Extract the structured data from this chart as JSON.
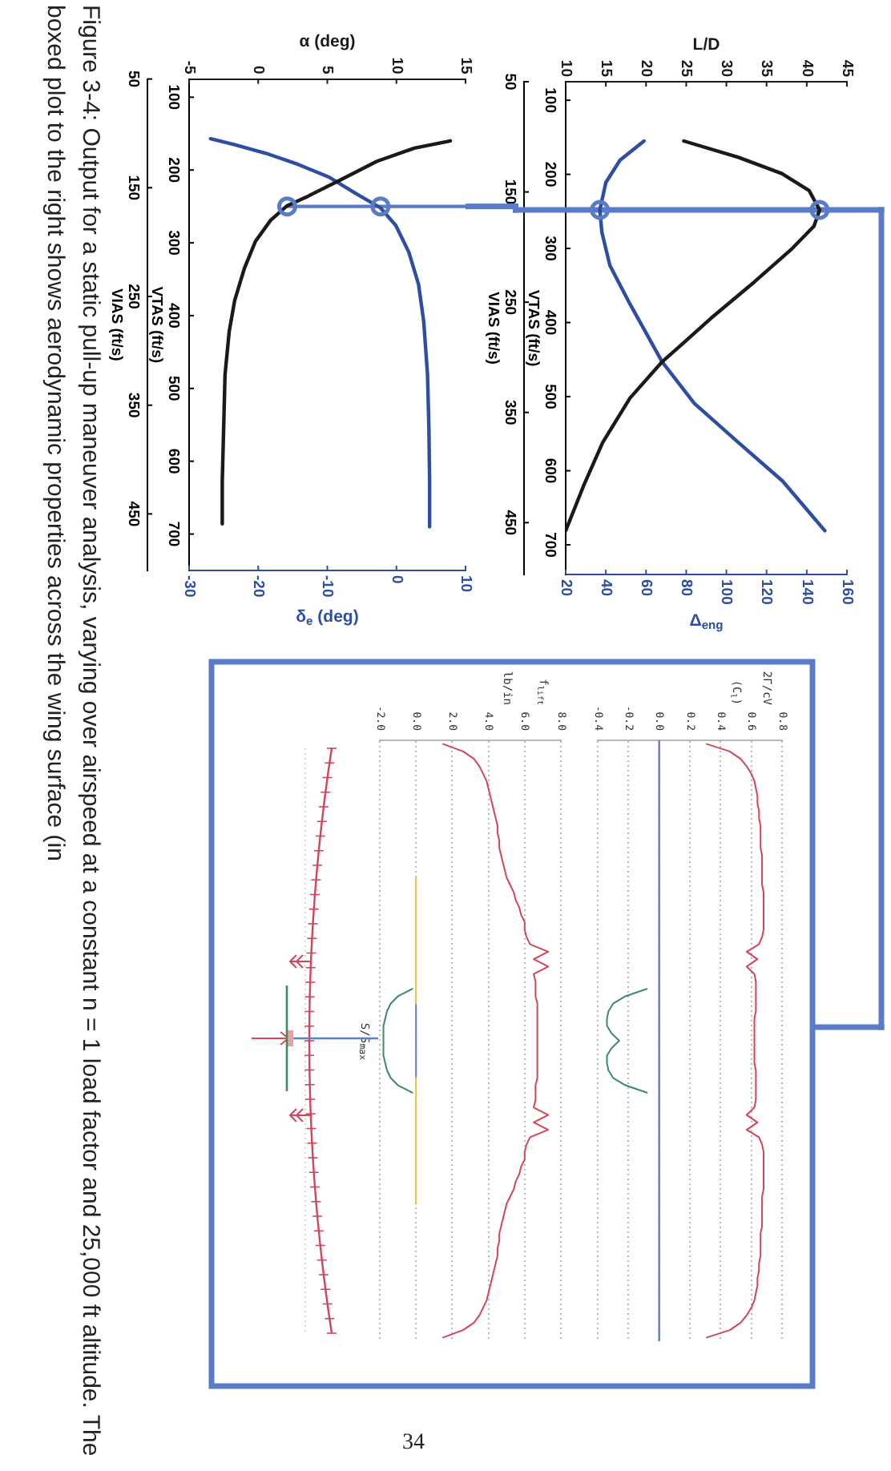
{
  "chart_data": [
    {
      "type": "line",
      "xlabel": "Δ$_{eng}$",
      "x2label": "L/D",
      "ylabel": "VTAS (ft/s)",
      "y2label": "VIAS (ft/s)",
      "xlim": [
        20,
        160
      ],
      "xticks": [
        20,
        40,
        60,
        80,
        100,
        120,
        140,
        160
      ],
      "x2lim": [
        10,
        45
      ],
      "x2ticks": [
        10,
        15,
        20,
        25,
        30,
        35,
        40,
        45
      ],
      "ylim": [
        740,
        75
      ],
      "yticks": [
        100,
        200,
        300,
        400,
        500,
        600,
        700
      ],
      "y2lim": [
        497,
        50
      ],
      "y2ticks": [
        50,
        150,
        250,
        350,
        450
      ],
      "ref_lines": [
        {
          "axis": "y",
          "value": 248,
          "color": "#5a7bc8"
        }
      ],
      "series": [
        {
          "type": "line",
          "axis": "x2",
          "color": "#1a1a1a",
          "x": [
            24.7,
            31.5,
            36.9,
            40.3,
            41.6,
            40.9,
            38.2,
            33.5,
            28.1,
            24.7,
            22,
            18,
            14.6,
            12.2,
            10
          ],
          "values": [
            155,
            177,
            199,
            222,
            248,
            270,
            300,
            345,
            394,
            427,
            453,
            502,
            562,
            621,
            681
          ]
        },
        {
          "type": "line",
          "color": "#2d4ea3",
          "x": [
            59,
            47,
            40,
            37,
            38,
            42,
            52,
            68,
            84,
            106,
            128,
            149
          ],
          "values": [
            155,
            181,
            211,
            248,
            278,
            323,
            375,
            453,
            509,
            562,
            614,
            681
          ]
        },
        {
          "type": "scatter",
          "axis": "x2",
          "marker": "circle",
          "color": "#5a7bc8",
          "x": [
            41.6
          ],
          "values": [
            248
          ]
        },
        {
          "type": "scatter",
          "marker": "circle",
          "color": "#5a7bc8",
          "x": [
            37
          ],
          "values": [
            248
          ]
        }
      ],
      "annotations": [
        "Figure 3-4: Output for a static pull-up maneuver analysis, varying over airspeed at a constant n = 1 load factor and 25,000 ft altitude. The boxed plot to the right shows aerodynamic properties across the wing surface (in",
        "34"
      ]
    },
    {
      "type": "line",
      "xlabel": "δ$_{e}$ (deg)",
      "x2label": "α (deg)",
      "ylabel": "VTAS (ft/s)",
      "y2label": "VIAS (ft/s)",
      "xlim": [
        -30,
        10
      ],
      "xticks": [
        -30,
        -20,
        -10,
        0,
        10
      ],
      "x2lim": [
        -5,
        15
      ],
      "x2ticks": [
        -5,
        0,
        5,
        10,
        15
      ],
      "ylim": [
        750,
        75
      ],
      "yticks": [
        100,
        200,
        300,
        400,
        500,
        600,
        700
      ],
      "y2lim": [
        502,
        50
      ],
      "y2ticks": [
        50,
        150,
        250,
        350,
        450
      ],
      "series": [
        {
          "type": "line",
          "axis": "x2",
          "color": "#1a1a1a",
          "x": [
            13.9,
            11.3,
            8.6,
            5.9,
            3.6,
            2.1,
            0.9,
            -0.2,
            -1,
            -1.7,
            -2.1,
            -2.4,
            -2.5,
            -2.6,
            -2.6
          ],
          "values": [
            160,
            170,
            188,
            214,
            236,
            249,
            269,
            298,
            335,
            379,
            422,
            481,
            554,
            628,
            686
          ]
        },
        {
          "type": "line",
          "color": "#2d4ea3",
          "x": [
            -26.9,
            -23.5,
            -18.9,
            -14.3,
            -9.7,
            -5.9,
            -2.3,
            -0.1,
            1.8,
            3.2,
            3.95,
            4.5,
            4.7,
            4.8,
            4.8
          ],
          "values": [
            157,
            165,
            177,
            192,
            210,
            232,
            252,
            276,
            313,
            357,
            408,
            481,
            554,
            628,
            690
          ]
        },
        {
          "type": "line",
          "axis": "x2",
          "color": "#5a7bc8",
          "x": [
            2.1,
            15
          ],
          "values": [
            250,
            250
          ]
        },
        {
          "type": "scatter",
          "axis": "x2",
          "marker": "circle",
          "color": "#5a7bc8",
          "x": [
            2.1
          ],
          "values": [
            250
          ]
        },
        {
          "type": "scatter",
          "marker": "circle",
          "color": "#5a7bc8",
          "x": [
            -2.3
          ],
          "values": [
            250
          ]
        }
      ]
    },
    {
      "type": "line",
      "orientation": "horizontal",
      "xlabel": "2Γ/cV\n(C$_{l}$)",
      "categories": [
        null,
        null,
        null,
        null,
        null,
        null,
        null,
        null,
        null,
        null,
        null,
        null,
        null,
        null,
        null,
        null,
        null,
        null,
        null,
        null,
        null,
        null,
        null,
        null,
        null,
        null,
        null,
        null,
        null,
        null,
        null,
        null,
        null,
        null,
        null,
        null,
        null,
        null,
        null,
        null,
        null,
        null,
        null,
        null,
        null,
        null,
        null,
        null,
        null,
        null,
        null,
        null,
        null,
        null,
        null,
        null,
        null,
        null,
        null,
        null,
        null,
        null,
        null,
        null,
        null,
        null,
        null,
        null,
        null,
        null,
        null,
        null,
        null,
        null,
        null,
        null,
        null,
        null,
        null,
        null,
        null
      ],
      "xlim": [
        -0.4,
        0.8
      ],
      "xticks": [
        -0.4,
        -0.2,
        {
          "value": 0,
          "label": "0.0"
        },
        0.2,
        0.4,
        0.6,
        0.8
      ],
      "grid": "x",
      "tick_labels": "x",
      "ref_lines": [
        {
          "axis": "x",
          "value": 0,
          "color": "#5a80d0"
        }
      ],
      "series": [
        {
          "color": "#d2455a",
          "values": [
            0.31,
            0.46,
            0.53,
            0.57,
            0.6,
            0.62,
            0.63,
            0.64,
            0.64,
            0.65,
            0.65,
            0.66,
            0.66,
            0.66,
            0.66,
            0.67,
            0.67,
            0.67,
            0.67,
            0.67,
            0.68,
            0.68,
            0.68,
            0.68,
            0.68,
            0.68,
            0.67,
            0.65,
            0.57,
            0.64,
            0.57,
            0.62,
            0.63,
            0.63,
            0.63,
            0.63,
            0.63,
            0.62,
            0.62,
            0.62,
            0.62,
            0.62,
            0.62,
            0.62,
            0.63,
            0.63,
            0.63,
            0.63,
            0.63,
            0.62,
            0.57,
            0.64,
            0.57,
            0.65,
            0.67,
            0.68,
            0.68,
            0.68,
            0.68,
            0.68,
            0.68,
            0.67,
            0.67,
            0.67,
            0.67,
            0.67,
            0.66,
            0.66,
            0.66,
            0.66,
            0.65,
            0.65,
            0.64,
            0.64,
            0.63,
            0.62,
            0.6,
            0.57,
            0.53,
            0.46,
            0.31
          ]
        },
        {
          "color": "#3d8a63",
          "values": [
            null,
            null,
            null,
            null,
            null,
            null,
            null,
            null,
            null,
            null,
            null,
            null,
            null,
            null,
            null,
            null,
            null,
            null,
            null,
            null,
            null,
            null,
            null,
            null,
            null,
            null,
            null,
            null,
            null,
            null,
            null,
            null,
            null,
            -0.08,
            -0.22,
            -0.3,
            -0.33,
            -0.34,
            -0.34,
            -0.31,
            -0.26,
            -0.31,
            -0.34,
            -0.34,
            -0.33,
            -0.3,
            -0.22,
            -0.08,
            null,
            null,
            null,
            null,
            null,
            null,
            null,
            null,
            null,
            null,
            null,
            null,
            null,
            null,
            null,
            null,
            null,
            null,
            null,
            null,
            null,
            null,
            null,
            null,
            null,
            null,
            null,
            null,
            null,
            null,
            null,
            null,
            null
          ]
        }
      ]
    },
    {
      "type": "line",
      "orientation": "horizontal",
      "xlabel": "f$_{lift}$\nlb/in",
      "categories": [
        null,
        null,
        null,
        null,
        null,
        null,
        null,
        null,
        null,
        null,
        null,
        null,
        null,
        null,
        null,
        null,
        null,
        null,
        null,
        null,
        null,
        null,
        null,
        null,
        null,
        null,
        null,
        null,
        null,
        null,
        null,
        null,
        null,
        null,
        null,
        null,
        null,
        null,
        null,
        null,
        null,
        null,
        null,
        null,
        null,
        null,
        null,
        null,
        null,
        null,
        null,
        null,
        null,
        null,
        null,
        null,
        null,
        null,
        null,
        null,
        null,
        null,
        null,
        null,
        null,
        null,
        null,
        null,
        null,
        null,
        null,
        null,
        null,
        null,
        null,
        null,
        null,
        null,
        null,
        null,
        null
      ],
      "xlim": [
        -2,
        8
      ],
      "xticks": [
        {
          "value": -2,
          "label": "-2.0"
        },
        {
          "value": 0,
          "label": "0.0"
        },
        {
          "value": 2,
          "label": "2.0"
        },
        {
          "value": 4,
          "label": "4.0"
        },
        {
          "value": 6,
          "label": "6.0"
        },
        {
          "value": 8,
          "label": "8.0"
        }
      ],
      "grid": "x",
      "tick_labels": "x",
      "annotations": [
        "S/S$_{max}$"
      ],
      "series": [
        {
          "color": "#d2455a",
          "values": [
            1.5,
            2.6,
            3.2,
            3.5,
            3.7,
            3.9,
            4,
            4.1,
            4.2,
            4.3,
            4.4,
            4.5,
            4.5,
            4.6,
            4.6,
            4.7,
            4.8,
            4.9,
            5,
            5.2,
            5.4,
            5.5,
            5.7,
            5.8,
            6,
            6,
            6.1,
            6.3,
            7.3,
            6.5,
            7.3,
            6.5,
            6.6,
            6.6,
            6.6,
            6.7,
            6.7,
            6.7,
            6.7,
            6.7,
            6.7,
            6.7,
            6.7,
            6.7,
            6.7,
            6.7,
            6.6,
            6.6,
            6.6,
            6.5,
            7.3,
            6.5,
            7.3,
            6.3,
            6.1,
            6,
            6,
            5.8,
            5.7,
            5.5,
            5.4,
            5.2,
            5,
            4.9,
            4.8,
            4.7,
            4.6,
            4.6,
            4.5,
            4.5,
            4.4,
            4.3,
            4.2,
            4.1,
            4,
            3.9,
            3.7,
            3.5,
            3.2,
            2.6,
            1.5
          ]
        },
        {
          "color": "#3d8a63",
          "values": [
            null,
            null,
            null,
            null,
            null,
            null,
            null,
            null,
            null,
            null,
            null,
            null,
            null,
            null,
            null,
            null,
            null,
            null,
            null,
            null,
            null,
            null,
            null,
            null,
            null,
            null,
            null,
            null,
            null,
            null,
            null,
            null,
            null,
            -0.2,
            -1,
            -1.4,
            -1.6,
            -1.7,
            -1.8,
            -1.8,
            -1.8,
            -1.8,
            -1.8,
            -1.7,
            -1.6,
            -1.4,
            -1,
            -0.2,
            null,
            null,
            null,
            null,
            null,
            null,
            null,
            null,
            null,
            null,
            null,
            null,
            null,
            null,
            null,
            null,
            null,
            null,
            null,
            null,
            null,
            null,
            null,
            null,
            null,
            null,
            null,
            null,
            null,
            null,
            null,
            null,
            null
          ]
        },
        {
          "color": "#e6c34a",
          "values": [
            null,
            null,
            null,
            null,
            null,
            null,
            null,
            null,
            null,
            null,
            null,
            null,
            null,
            null,
            null,
            null,
            null,
            null,
            0,
            0,
            0,
            0,
            0,
            0,
            0,
            0,
            0,
            0,
            0,
            0,
            0,
            0,
            0,
            0,
            0,
            0,
            null,
            null,
            null,
            null,
            null,
            null,
            null,
            null,
            null,
            0,
            0,
            0,
            0,
            0,
            0,
            0,
            0,
            0,
            0,
            0,
            0,
            0,
            0,
            0,
            0,
            0,
            0,
            null,
            null,
            null,
            null,
            null,
            null,
            null,
            null,
            null,
            null,
            null,
            null,
            null,
            null,
            null,
            null,
            null,
            null
          ]
        },
        {
          "color": "#5a80d0",
          "values": [
            null,
            null,
            null,
            null,
            null,
            null,
            null,
            null,
            null,
            null,
            null,
            null,
            null,
            null,
            null,
            null,
            null,
            null,
            null,
            null,
            null,
            null,
            null,
            null,
            null,
            null,
            null,
            null,
            null,
            null,
            null,
            null,
            null,
            null,
            null,
            0,
            0,
            0,
            0,
            0,
            0,
            0,
            0,
            0,
            0,
            0,
            null,
            null,
            null,
            null,
            null,
            null,
            null,
            null,
            null,
            null,
            null,
            null,
            null,
            null,
            null,
            null,
            null,
            null,
            null,
            null,
            null,
            null,
            null,
            null,
            null,
            null,
            null,
            null,
            null,
            null,
            null,
            null,
            null,
            null,
            null
          ]
        }
      ]
    }
  ]
}
